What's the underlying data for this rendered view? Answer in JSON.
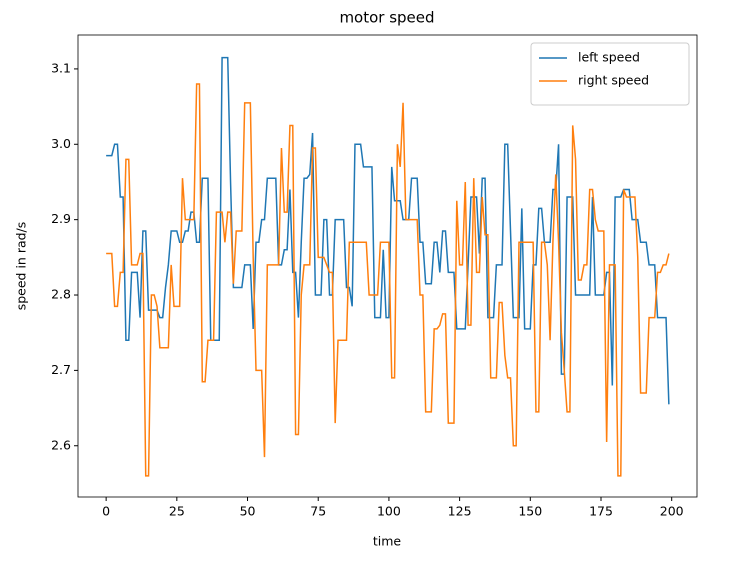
{
  "chart_data": {
    "type": "line",
    "title": "motor speed",
    "x_label": "time",
    "y_label": "speed in rad/s",
    "x": [
      0,
      1,
      2,
      3,
      4,
      5,
      6,
      7,
      8,
      9,
      10,
      11,
      12,
      13,
      14,
      15,
      16,
      17,
      18,
      19,
      20,
      21,
      22,
      23,
      24,
      25,
      26,
      27,
      28,
      29,
      30,
      31,
      32,
      33,
      34,
      35,
      36,
      37,
      38,
      39,
      40,
      41,
      42,
      43,
      44,
      45,
      46,
      47,
      48,
      49,
      50,
      51,
      52,
      53,
      54,
      55,
      56,
      57,
      58,
      59,
      60,
      61,
      62,
      63,
      64,
      65,
      66,
      67,
      68,
      69,
      70,
      71,
      72,
      73,
      74,
      75,
      76,
      77,
      78,
      79,
      80,
      81,
      82,
      83,
      84,
      85,
      86,
      87,
      88,
      89,
      90,
      91,
      92,
      93,
      94,
      95,
      96,
      97,
      98,
      99,
      100,
      101,
      102,
      103,
      104,
      105,
      106,
      107,
      108,
      109,
      110,
      111,
      112,
      113,
      114,
      115,
      116,
      117,
      118,
      119,
      120,
      121,
      122,
      123,
      124,
      125,
      126,
      127,
      128,
      129,
      130,
      131,
      132,
      133,
      134,
      135,
      136,
      137,
      138,
      139,
      140,
      141,
      142,
      143,
      144,
      145,
      146,
      147,
      148,
      149,
      150,
      151,
      152,
      153,
      154,
      155,
      156,
      157,
      158,
      159,
      160,
      161,
      162,
      163,
      164,
      165,
      166,
      167,
      168,
      169,
      170,
      171,
      172,
      173,
      174,
      175,
      176,
      177,
      178,
      179,
      180,
      181,
      182,
      183,
      184,
      185,
      186,
      187,
      188,
      189,
      190,
      191,
      192,
      193,
      194,
      195,
      196,
      197,
      198,
      199
    ],
    "series": [
      {
        "name": "left speed",
        "color": "#1f77b4",
        "values": [
          2.985,
          2.985,
          2.985,
          3.0,
          3.0,
          2.93,
          2.93,
          2.74,
          2.74,
          2.83,
          2.83,
          2.83,
          2.77,
          2.885,
          2.885,
          2.78,
          2.78,
          2.78,
          2.78,
          2.77,
          2.77,
          2.81,
          2.84,
          2.885,
          2.885,
          2.885,
          2.87,
          2.87,
          2.885,
          2.885,
          2.91,
          2.91,
          2.87,
          2.87,
          2.955,
          2.955,
          2.955,
          2.74,
          2.74,
          2.74,
          2.74,
          3.115,
          3.115,
          3.115,
          2.95,
          2.81,
          2.81,
          2.81,
          2.81,
          2.84,
          2.84,
          2.84,
          2.755,
          2.87,
          2.87,
          2.9,
          2.9,
          2.955,
          2.955,
          2.955,
          2.955,
          2.84,
          2.84,
          2.86,
          2.86,
          2.94,
          2.83,
          2.83,
          2.77,
          2.87,
          2.955,
          2.955,
          2.96,
          3.015,
          2.8,
          2.8,
          2.8,
          2.9,
          2.9,
          2.8,
          2.8,
          2.9,
          2.9,
          2.9,
          2.9,
          2.81,
          2.81,
          2.785,
          3.0,
          3.0,
          3.0,
          2.97,
          2.97,
          2.97,
          2.97,
          2.77,
          2.77,
          2.77,
          2.86,
          2.77,
          2.77,
          2.97,
          2.925,
          2.925,
          2.925,
          2.9,
          2.9,
          2.9,
          2.955,
          2.955,
          2.955,
          2.87,
          2.87,
          2.815,
          2.815,
          2.815,
          2.87,
          2.87,
          2.83,
          2.885,
          2.885,
          2.83,
          2.83,
          2.83,
          2.755,
          2.755,
          2.755,
          2.755,
          2.84,
          2.93,
          2.93,
          2.93,
          2.855,
          2.955,
          2.955,
          2.77,
          2.77,
          2.77,
          2.84,
          2.84,
          2.84,
          3.0,
          3.0,
          2.885,
          2.77,
          2.77,
          2.77,
          2.915,
          2.755,
          2.755,
          2.755,
          2.84,
          2.84,
          2.915,
          2.915,
          2.87,
          2.87,
          2.87,
          2.94,
          2.94,
          3.0,
          2.695,
          2.695,
          2.93,
          2.93,
          2.93,
          2.8,
          2.8,
          2.8,
          2.8,
          2.8,
          2.8,
          2.93,
          2.8,
          2.8,
          2.8,
          2.8,
          2.83,
          2.83,
          2.68,
          2.93,
          2.93,
          2.93,
          2.94,
          2.94,
          2.94,
          2.9,
          2.9,
          2.9,
          2.87,
          2.87,
          2.87,
          2.84,
          2.84,
          2.84,
          2.77,
          2.77,
          2.77,
          2.77,
          2.655
        ]
      },
      {
        "name": "right speed",
        "color": "#ff7f0e",
        "values": [
          2.855,
          2.855,
          2.855,
          2.785,
          2.785,
          2.83,
          2.83,
          2.98,
          2.98,
          2.84,
          2.84,
          2.84,
          2.855,
          2.855,
          2.56,
          2.56,
          2.8,
          2.8,
          2.785,
          2.73,
          2.73,
          2.73,
          2.73,
          2.84,
          2.785,
          2.785,
          2.785,
          2.955,
          2.9,
          2.9,
          2.9,
          2.9,
          3.08,
          3.08,
          2.685,
          2.685,
          2.74,
          2.74,
          2.74,
          2.91,
          2.91,
          2.91,
          2.87,
          2.91,
          2.91,
          2.815,
          2.885,
          2.885,
          2.885,
          3.055,
          3.055,
          3.055,
          2.85,
          2.7,
          2.7,
          2.7,
          2.585,
          2.84,
          2.84,
          2.84,
          2.84,
          2.84,
          2.995,
          2.91,
          2.91,
          3.025,
          3.025,
          2.615,
          2.615,
          2.8,
          2.84,
          2.84,
          2.84,
          2.995,
          2.995,
          2.85,
          2.85,
          2.85,
          2.84,
          2.83,
          2.83,
          2.63,
          2.74,
          2.74,
          2.74,
          2.74,
          2.87,
          2.87,
          2.87,
          2.87,
          2.87,
          2.87,
          2.87,
          2.8,
          2.8,
          2.8,
          2.8,
          2.87,
          2.87,
          2.87,
          2.87,
          2.69,
          2.69,
          3.0,
          2.97,
          3.055,
          2.9,
          2.9,
          2.9,
          2.9,
          2.9,
          2.8,
          2.8,
          2.645,
          2.645,
          2.645,
          2.755,
          2.755,
          2.76,
          2.775,
          2.775,
          2.63,
          2.63,
          2.63,
          2.925,
          2.84,
          2.84,
          2.95,
          2.76,
          2.76,
          2.955,
          2.83,
          2.83,
          2.93,
          2.88,
          2.88,
          2.69,
          2.69,
          2.69,
          2.79,
          2.79,
          2.72,
          2.69,
          2.69,
          2.6,
          2.6,
          2.87,
          2.87,
          2.87,
          2.87,
          2.87,
          2.87,
          2.645,
          2.645,
          2.87,
          2.87,
          2.84,
          2.74,
          2.87,
          2.96,
          2.87,
          2.75,
          2.7,
          2.645,
          2.645,
          3.025,
          2.98,
          2.82,
          2.82,
          2.84,
          2.84,
          2.94,
          2.94,
          2.9,
          2.885,
          2.885,
          2.885,
          2.605,
          2.84,
          2.84,
          2.84,
          2.56,
          2.56,
          2.94,
          2.93,
          2.93,
          2.93,
          2.93,
          2.85,
          2.67,
          2.67,
          2.67,
          2.77,
          2.77,
          2.77,
          2.83,
          2.83,
          2.84,
          2.84,
          2.855
        ]
      }
    ],
    "xlim": [
      -9.95,
      208.95
    ],
    "ylim": [
      2.532,
      3.145
    ],
    "xticks": [
      0,
      25,
      50,
      75,
      100,
      125,
      150,
      175,
      200
    ],
    "yticks": [
      2.6,
      2.7,
      2.8,
      2.9,
      {
        "value": 3.0,
        "label": "3.0"
      },
      3.1
    ],
    "legend": "upper right"
  }
}
